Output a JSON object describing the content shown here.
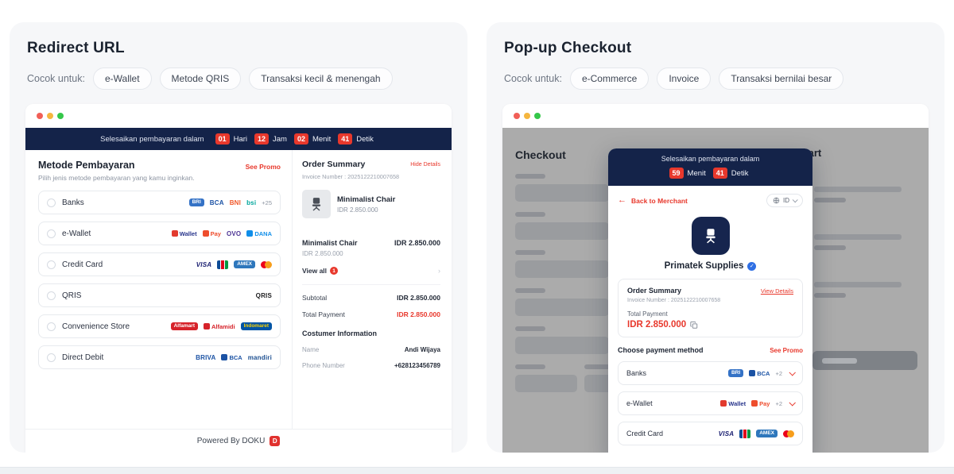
{
  "left": {
    "title": "Redirect URL",
    "suitable_label": "Cocok untuk:",
    "tags": [
      "e-Wallet",
      "Metode QRIS",
      "Transaksi kecil & menengah"
    ],
    "countdown": {
      "prefix": "Selesaikan pembayaran dalam",
      "units": [
        {
          "value": "01",
          "label": "Hari"
        },
        {
          "value": "12",
          "label": "Jam"
        },
        {
          "value": "02",
          "label": "Menit"
        },
        {
          "value": "41",
          "label": "Detik"
        }
      ]
    },
    "methods_heading": "Metode Pembayaran",
    "see_promo": "See Promo",
    "methods_subheading": "Pilih jenis metode pembayaran yang kamu inginkan.",
    "methods": [
      {
        "label": "Banks",
        "extra": "+25",
        "logos": [
          {
            "name": "bri",
            "type": "chip",
            "text": "BRI",
            "bg": "#3472c6",
            "color": "#ffffff"
          },
          {
            "name": "bca",
            "type": "text",
            "text": "BCA",
            "color": "#1b52a4"
          },
          {
            "name": "bni",
            "type": "text",
            "text": "BNI",
            "color": "#f0582a"
          },
          {
            "name": "bsi",
            "type": "text",
            "text": "bsi",
            "color": "#00a59b"
          }
        ]
      },
      {
        "label": "e-Wallet",
        "logos": [
          {
            "name": "doku-wallet",
            "type": "icon-text",
            "icon": "#e23a2e",
            "text": "Wallet",
            "color": "#27348b"
          },
          {
            "name": "shopee-pay",
            "type": "icon-text",
            "icon": "#ee4d2d",
            "text": "Pay",
            "color": "#ee4d2d"
          },
          {
            "name": "ovo",
            "type": "text",
            "text": "OVO",
            "color": "#4c3494"
          },
          {
            "name": "dana",
            "type": "icon-text",
            "icon": "#108ee9",
            "text": "DANA",
            "color": "#108ee9"
          }
        ]
      },
      {
        "label": "Credit Card",
        "logos": [
          {
            "name": "visa",
            "type": "text",
            "text": "VISA",
            "color": "#1a1f71",
            "italic": true
          },
          {
            "name": "jcb",
            "type": "jcb"
          },
          {
            "name": "amex",
            "type": "chip",
            "text": "AMEX",
            "bg": "#2e77bc",
            "color": "#ffffff"
          },
          {
            "name": "mastercard",
            "type": "mc"
          }
        ]
      },
      {
        "label": "QRIS",
        "logos": [
          {
            "name": "qris",
            "type": "text",
            "text": "QRIS",
            "color": "#1d1d1f"
          }
        ]
      },
      {
        "label": "Convenience Store",
        "logos": [
          {
            "name": "alfamart",
            "type": "chip",
            "text": "Alfamart",
            "bg": "#d6232a",
            "color": "#ffffff"
          },
          {
            "name": "alfamidi",
            "type": "icon-text",
            "icon": "#d6232a",
            "text": "Alfamidi",
            "color": "#d6232a"
          },
          {
            "name": "indomaret",
            "type": "chip",
            "text": "Indomaret",
            "bg": "#0054a5",
            "color": "#ffd200"
          }
        ]
      },
      {
        "label": "Direct Debit",
        "logos": [
          {
            "name": "briva",
            "type": "text",
            "text": "BRIVA",
            "color": "#1b52a4"
          },
          {
            "name": "bca-debit",
            "type": "icon-text",
            "icon": "#1b52a4",
            "text": "BCA",
            "color": "#1b52a4"
          },
          {
            "name": "mandiri",
            "type": "text",
            "text": "mandiri",
            "color": "#1d4f91"
          }
        ]
      }
    ],
    "summary": {
      "heading": "Order Summary",
      "toggle_link": "Hide Details",
      "invoice": "Invoice Number : 2025122210007658",
      "product_name": "Minimalist Chair",
      "product_price": "IDR 2.850.000",
      "item_name": "Minimalist Chair",
      "item_price": "IDR 2.850.000",
      "item_subprice": "IDR 2.850.000",
      "view_all": "View all",
      "view_all_count": "1",
      "subtotal_label": "Subtotal",
      "subtotal_value": "IDR 2.850.000",
      "total_label": "Total Payment",
      "total_value": "IDR 2.850.000",
      "customer_heading": "Costumer Information",
      "name_label": "Name",
      "name_value": "Andi Wijaya",
      "phone_label": "Phone Number",
      "phone_value": "+628123456789"
    },
    "powered_by": "Powered By DOKU",
    "doku_logo_letter": "D"
  },
  "right": {
    "title": "Pop-up Checkout",
    "suitable_label": "Cocok untuk:",
    "tags": [
      "e-Commerce",
      "Invoice",
      "Transaksi bernilai besar"
    ],
    "background": {
      "checkout_heading": "Checkout",
      "cart_heading": "Your Cart"
    },
    "modal": {
      "countdown_prefix": "Selesaikan pembayaran dalam",
      "countdown_units": [
        {
          "value": "59",
          "label": "Menit"
        },
        {
          "value": "41",
          "label": "Detik"
        }
      ],
      "back_link": "Back to Merchant",
      "back_arrow": "←",
      "language": "ID",
      "merchant_name": "Primatek Supplies",
      "verified_check": "✓",
      "summary_heading": "Order Summary",
      "view_details": "View Details",
      "invoice": "Invoice Number : 2025122210007658",
      "total_label": "Total Payment",
      "total_value": "IDR 2.850.000",
      "choose_heading": "Choose payment method",
      "see_promo": "See Promo",
      "methods": [
        {
          "label": "Banks",
          "extra": "+2",
          "chevron": true,
          "logos": [
            {
              "name": "bri",
              "type": "chip",
              "text": "BRI",
              "bg": "#3472c6",
              "color": "#ffffff"
            },
            {
              "name": "bca",
              "type": "icon-text",
              "icon": "#1b52a4",
              "text": "BCA",
              "color": "#1b52a4"
            }
          ]
        },
        {
          "label": "e-Wallet",
          "extra": "+2",
          "chevron": true,
          "logos": [
            {
              "name": "doku-wallet",
              "type": "icon-text",
              "icon": "#e23a2e",
              "text": "Wallet",
              "color": "#27348b"
            },
            {
              "name": "shopee-pay",
              "type": "icon-text",
              "icon": "#ee4d2d",
              "text": "Pay",
              "color": "#ee4d2d"
            }
          ]
        },
        {
          "label": "Credit Card",
          "logos": [
            {
              "name": "visa",
              "type": "text",
              "text": "VISA",
              "color": "#1a1f71",
              "italic": true
            },
            {
              "name": "jcb",
              "type": "jcb"
            },
            {
              "name": "amex",
              "type": "chip",
              "text": "AMEX",
              "bg": "#2e77bc",
              "color": "#ffffff"
            },
            {
              "name": "mastercard",
              "type": "mc"
            }
          ]
        }
      ]
    }
  }
}
